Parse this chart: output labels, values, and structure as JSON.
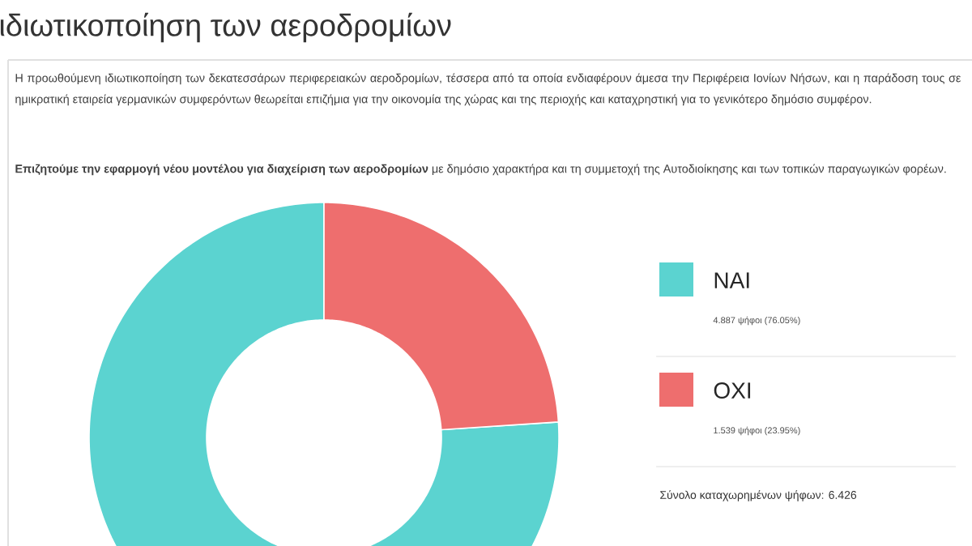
{
  "chart_data": {
    "type": "donut",
    "title": "ιδιωτικοποίηση των αεροδρομίων",
    "annotations": [
      "Η προωθούμενη ιδιωτικοποίηση των δεκατεσσάρων περιφερειακών αεροδρομίων, τέσσερα από τα οποία ενδιαφέρουν άμεσα την Περιφέρεια Ιονίων Νήσων, και η παράδοση τους σε ημικρατική εταιρεία γερμανικών συμφερόντων θεωρείται επιζήμια για την οικονομία της χώρας και της περιοχής και καταχρηστική για το γενικότερο δημόσιο συμφέρον.",
      "**Επιζητούμε την εφαρμογή νέου μοντέλου για διαχείριση των αεροδρομίων** με δημόσιο χαρακτήρα και τη συμμετοχή της Αυτοδιοίκησης και των τοπικών παραγωγικών φορέων.",
      "4.887 ψήφοι (76.05%)",
      "1.539 ψήφοι (23.95%)",
      "Σύνολο καταχωρημένων ψήφων: 6.426"
    ],
    "categories": [
      "NAI",
      "OXI"
    ],
    "values": [
      76.05,
      23.95
    ],
    "colors": [
      "#5bd3d0",
      "#ee6e6e"
    ],
    "legend": "right"
  }
}
